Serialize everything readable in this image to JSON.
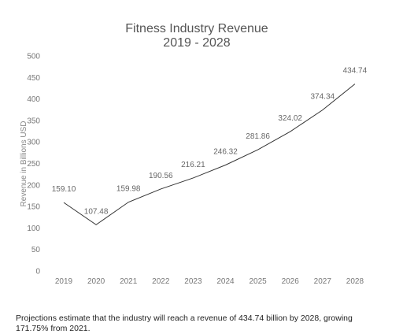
{
  "chart_data": {
    "type": "line",
    "title_line1": "Fitness Industry Revenue",
    "title_line2": "2019 - 2028",
    "ylabel": "Revenue in Billions USD",
    "xlabel": "",
    "ylim": [
      0,
      500
    ],
    "yticks": [
      0,
      50,
      100,
      150,
      200,
      250,
      300,
      350,
      400,
      450,
      500
    ],
    "categories": [
      "2019",
      "2020",
      "2021",
      "2022",
      "2023",
      "2024",
      "2025",
      "2026",
      "2027",
      "2028"
    ],
    "values": [
      159.1,
      107.48,
      159.98,
      190.56,
      216.21,
      246.32,
      281.86,
      324.02,
      374.34,
      434.74
    ],
    "value_labels": [
      "159.10",
      "107.48",
      "159.98",
      "190.56",
      "216.21",
      "246.32",
      "281.86",
      "324.02",
      "374.34",
      "434.74"
    ],
    "grid": false,
    "line_color": "#333333"
  },
  "caption": "Projections estimate that the industry will reach a revenue of 434.74 billion by 2028, growing 171.75% from 2021."
}
